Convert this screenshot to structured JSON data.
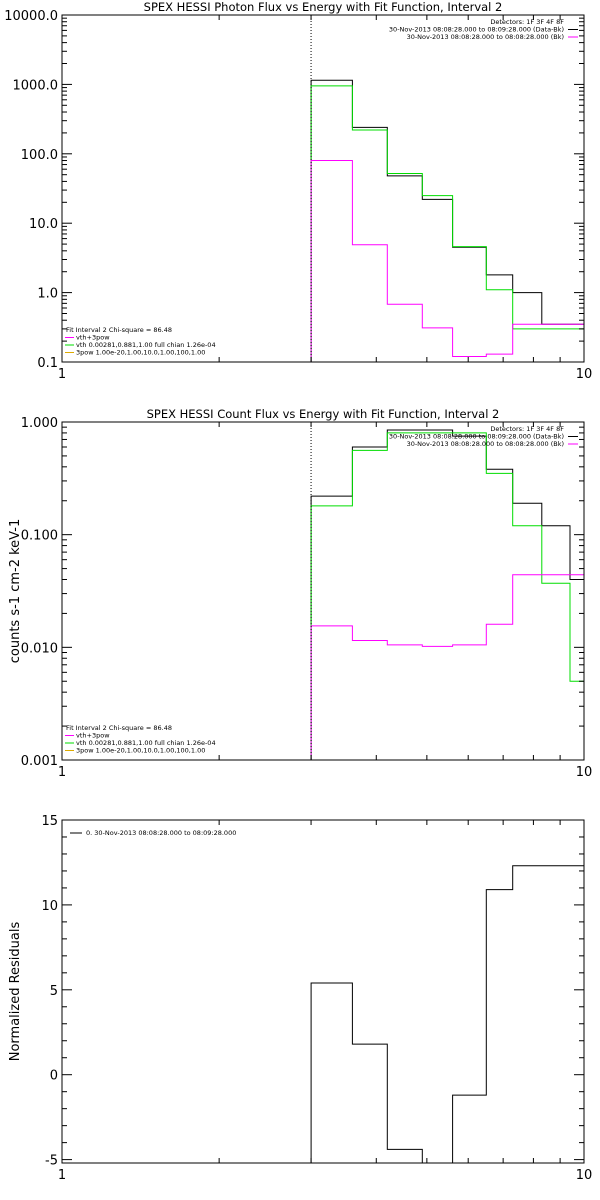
{
  "chart_data": [
    {
      "type": "line",
      "title": "SPEX HESSI Photon Flux vs Energy with Fit Function, Interval 2",
      "xscale": "log",
      "yscale": "log",
      "xlim": [
        1,
        10
      ],
      "ylim": [
        0.1,
        10000
      ],
      "x_ticks": [
        {
          "v": 1,
          "label": "1"
        },
        {
          "v": 10,
          "label": "10"
        }
      ],
      "y_ticks": [
        {
          "v": 0.1,
          "label": "0.1"
        },
        {
          "v": 1,
          "label": "1.0"
        },
        {
          "v": 10,
          "label": "10.0"
        },
        {
          "v": 100,
          "label": "100.0"
        },
        {
          "v": 1000,
          "label": "1000.0"
        },
        {
          "v": 10000,
          "label": "10000.0"
        }
      ],
      "vline": 3.0,
      "legend_top": [
        "Detectors: 1F 3F 4F 8F",
        "30-Nov-2013 08:08:28.000 to 08:09:28.000 (Data-Bk)",
        "30-Nov-2013 08:08:28.000 to 08:08:28.000 (Bk)"
      ],
      "legend_bottom": [
        "Fit Interval 2   Chi-square = 86.48",
        "vth+3pow",
        "vth 0.00281,0.881,1.00  full chian 1.26e-04",
        "3pow 1.00e-20,1.00,10.0,1.00,100,1.00"
      ],
      "legend_bottom_colors": [
        "#000000",
        "#ff00ff",
        "#00dd00",
        "#ddaa00"
      ],
      "series": [
        {
          "color": "#000000",
          "edges": [
            3.0,
            3.6,
            4.2,
            4.9,
            5.6,
            6.5,
            7.3,
            8.3,
            9.4,
            10
          ],
          "values": [
            1150,
            240,
            48,
            22,
            4.5,
            1.8,
            1.0,
            0.35,
            0.35
          ]
        },
        {
          "color": "#00dd00",
          "edges": [
            3.0,
            3.6,
            4.2,
            4.9,
            5.6,
            6.5,
            7.3,
            8.3,
            9.4,
            10
          ],
          "values": [
            950,
            220,
            52,
            25,
            4.6,
            1.1,
            0.3,
            0.3,
            0.3
          ]
        },
        {
          "color": "#ff00ff",
          "edges": [
            3.0,
            3.6,
            4.2,
            4.9,
            5.6,
            6.5,
            7.3,
            8.3,
            9.4,
            10
          ],
          "values": [
            80,
            4.9,
            0.68,
            0.31,
            0.12,
            0.13,
            0.35,
            0.35,
            0.35
          ]
        }
      ]
    },
    {
      "type": "line",
      "title": "SPEX HESSI Count Flux vs Energy with Fit Function, Interval 2",
      "xscale": "log",
      "yscale": "log",
      "xlim": [
        1,
        10
      ],
      "ylim": [
        0.001,
        1
      ],
      "ylabel": "counts s-1 cm-2 keV-1",
      "x_ticks": [
        {
          "v": 1,
          "label": "1"
        },
        {
          "v": 10,
          "label": "10"
        }
      ],
      "y_ticks": [
        {
          "v": 0.001,
          "label": "0.001"
        },
        {
          "v": 0.01,
          "label": "0.010"
        },
        {
          "v": 0.1,
          "label": "0.100"
        },
        {
          "v": 1,
          "label": "1.000"
        }
      ],
      "vline": 3.0,
      "legend_top": [
        "Detectors: 1F 3F 4F 8F",
        "30-Nov-2013 08:08:28.000 to 08:09:28.000 (Data-Bk)",
        "30-Nov-2013 08:08:28.000 to 08:08:28.000 (Bk)"
      ],
      "legend_bottom": [
        "Fit Interval 2   Chi-square = 86.48",
        "vth+3pow",
        "vth 0.00281,0.881,1.00  full chian 1.26e-04",
        "3pow 1.00e-20,1.00,10.0,1.00,100,1.00"
      ],
      "legend_bottom_colors": [
        "#000000",
        "#ff00ff",
        "#00dd00",
        "#ddaa00"
      ],
      "series": [
        {
          "color": "#000000",
          "edges": [
            3.0,
            3.6,
            4.2,
            4.9,
            5.6,
            6.5,
            7.3,
            8.3,
            9.4,
            10
          ],
          "values": [
            0.22,
            0.6,
            0.85,
            0.85,
            0.75,
            0.38,
            0.19,
            0.12,
            0.04
          ]
        },
        {
          "color": "#00dd00",
          "edges": [
            3.0,
            3.6,
            4.2,
            4.9,
            5.6,
            6.5,
            7.3,
            8.3,
            9.4,
            10
          ],
          "values": [
            0.18,
            0.56,
            0.8,
            0.8,
            0.8,
            0.35,
            0.12,
            0.037,
            0.005
          ]
        },
        {
          "color": "#ff00ff",
          "edges": [
            3.0,
            3.6,
            4.2,
            4.9,
            5.6,
            6.5,
            7.3,
            8.3,
            9.4,
            10
          ],
          "values": [
            0.0155,
            0.0115,
            0.0105,
            0.0102,
            0.0105,
            0.016,
            0.044,
            0.044,
            0.044
          ]
        }
      ]
    },
    {
      "type": "line",
      "title": "",
      "xscale": "log",
      "yscale": "linear",
      "xlim": [
        1,
        10
      ],
      "ylim": [
        -5.2,
        15
      ],
      "ylabel": "Normalized Residuals",
      "x_ticks": [
        {
          "v": 1,
          "label": "1"
        },
        {
          "v": 10,
          "label": "10"
        }
      ],
      "y_ticks": [
        {
          "v": -5,
          "label": "-5"
        },
        {
          "v": 0,
          "label": "0"
        },
        {
          "v": 5,
          "label": "5"
        },
        {
          "v": 10,
          "label": "10"
        },
        {
          "v": 15,
          "label": "15"
        }
      ],
      "legend_top": [
        "0. 30-Nov-2013 08:08:28.000 to 08:09:28.000"
      ],
      "series": [
        {
          "color": "#000000",
          "edges": [
            3.0,
            3.6,
            4.2,
            4.9,
            5.6,
            6.5,
            7.3,
            8.3,
            9.4,
            10
          ],
          "values": [
            5.4,
            1.8,
            -4.4,
            -5.2,
            -1.2,
            10.9,
            12.3,
            12.3,
            12.3
          ]
        }
      ]
    }
  ]
}
